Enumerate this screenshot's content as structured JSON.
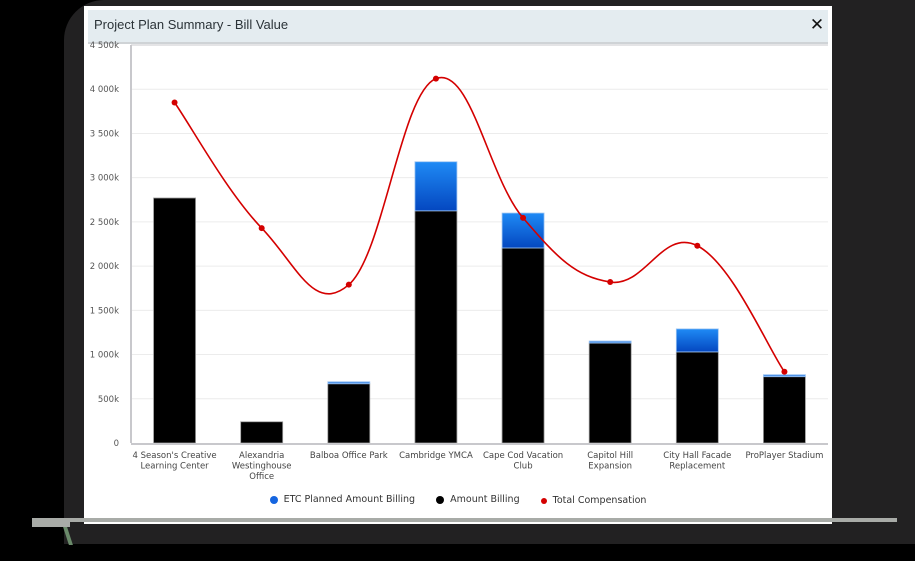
{
  "dialog": {
    "title": "Project Plan Summary - Bill Value",
    "close_label": "✕"
  },
  "colors": {
    "etc": "#1565e0",
    "amount": "#000000",
    "compensation": "#d40000",
    "grid": "#ececec",
    "axis": "#c8c8cc"
  },
  "legend": [
    {
      "label": "ETC Planned Amount Billing",
      "color": "#1565e0"
    },
    {
      "label": "Amount Billing",
      "color": "#000000"
    },
    {
      "label": "Total Compensation",
      "color": "#d40000"
    }
  ],
  "chart_data": {
    "type": "bar",
    "stacked": true,
    "title": "Project Plan Summary - Bill Value",
    "xlabel": "",
    "ylabel": "",
    "ylim": [
      0,
      4500
    ],
    "y_unit": "k",
    "y_ticks": [
      "0",
      "500k",
      "1 000k",
      "1 500k",
      "2 000k",
      "2 500k",
      "3 000k",
      "3 500k",
      "4 000k",
      "4 500k"
    ],
    "grid": true,
    "legend_position": "bottom",
    "categories": [
      [
        "4 Season's Creative",
        "Learning Center"
      ],
      [
        "Alexandria",
        "Westinghouse",
        "Office"
      ],
      [
        "Balboa Office Park"
      ],
      [
        "Cambridge YMCA"
      ],
      [
        "Cape Cod Vacation",
        "Club"
      ],
      [
        "Capitol Hill",
        "Expansion"
      ],
      [
        "City Hall Facade",
        "Replacement"
      ],
      [
        "ProPlayer Stadium"
      ]
    ],
    "series": [
      {
        "name": "ETC Planned Amount Billing",
        "type": "bar",
        "values": [
          0,
          0,
          20,
          555,
          395,
          20,
          260,
          20
        ]
      },
      {
        "name": "Amount Billing",
        "type": "bar",
        "values": [
          2770,
          240,
          670,
          2625,
          2205,
          1130,
          1030,
          750
        ]
      },
      {
        "name": "Total Compensation",
        "type": "spline",
        "values": [
          3850,
          2430,
          1790,
          4120,
          2545,
          1820,
          2230,
          805
        ]
      }
    ]
  }
}
